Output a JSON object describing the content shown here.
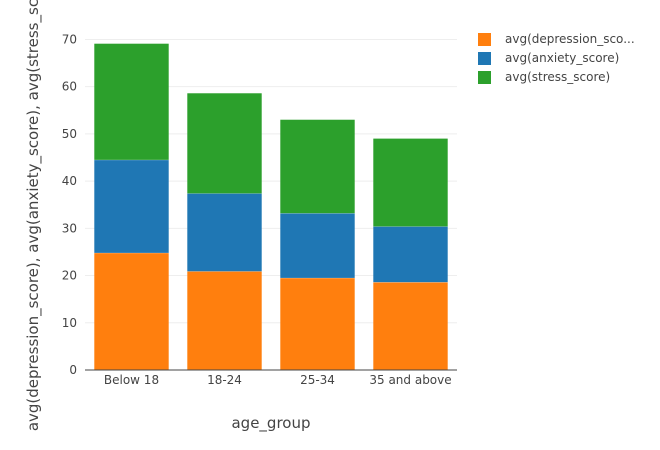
{
  "chart_data": {
    "type": "bar",
    "stacked": true,
    "categories": [
      "Below 18",
      "18-24",
      "25-34",
      "35 and above"
    ],
    "series": [
      {
        "name": "avg(depression_sco...",
        "color": "#ff7f0e",
        "values": [
          24.8,
          20.9,
          19.5,
          18.6
        ]
      },
      {
        "name": "avg(anxiety_score)",
        "color": "#1f77b4",
        "values": [
          19.7,
          16.5,
          13.7,
          11.8
        ]
      },
      {
        "name": "avg(stress_score)",
        "color": "#2ca02c",
        "values": [
          24.6,
          21.2,
          19.8,
          18.6
        ]
      }
    ],
    "title": "",
    "xlabel": "age_group",
    "ylabel": "avg(depression_score), avg(anxiety_score), avg(stress_score)",
    "ylim": [
      0,
      72
    ],
    "yticks": [
      0,
      10,
      20,
      30,
      40,
      50,
      60,
      70
    ],
    "grid": true,
    "legend_position": "top-right"
  }
}
